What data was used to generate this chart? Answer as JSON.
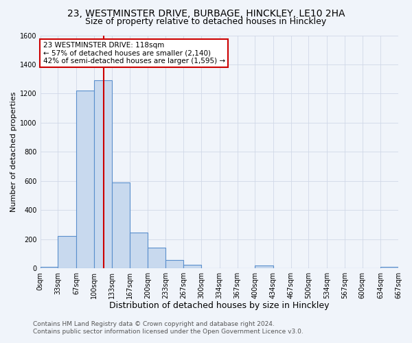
{
  "title": "23, WESTMINSTER DRIVE, BURBAGE, HINCKLEY, LE10 2HA",
  "subtitle": "Size of property relative to detached houses in Hinckley",
  "xlabel": "Distribution of detached houses by size in Hinckley",
  "ylabel": "Number of detached properties",
  "bin_edges": [
    0,
    33,
    67,
    100,
    133,
    167,
    200,
    233,
    267,
    300,
    334,
    367,
    400,
    434,
    467,
    500,
    534,
    567,
    600,
    634,
    667
  ],
  "bin_counts": [
    10,
    220,
    1220,
    1290,
    590,
    245,
    140,
    55,
    25,
    0,
    0,
    0,
    20,
    0,
    0,
    0,
    0,
    0,
    0,
    10
  ],
  "bar_facecolor": "#c8d9ee",
  "bar_edgecolor": "#5a8fcc",
  "property_line_x": 118,
  "property_line_color": "#cc0000",
  "annotation_line1": "23 WESTMINSTER DRIVE: 118sqm",
  "annotation_line2": "← 57% of detached houses are smaller (2,140)",
  "annotation_line3": "42% of semi-detached houses are larger (1,595) →",
  "annotation_box_edgecolor": "#cc0000",
  "annotation_box_facecolor": "#ffffff",
  "xlim": [
    0,
    667
  ],
  "ylim": [
    0,
    1600
  ],
  "yticks": [
    0,
    200,
    400,
    600,
    800,
    1000,
    1200,
    1400,
    1600
  ],
  "xtick_labels": [
    "0sqm",
    "33sqm",
    "67sqm",
    "100sqm",
    "133sqm",
    "167sqm",
    "200sqm",
    "233sqm",
    "267sqm",
    "300sqm",
    "334sqm",
    "367sqm",
    "400sqm",
    "434sqm",
    "467sqm",
    "500sqm",
    "534sqm",
    "567sqm",
    "600sqm",
    "634sqm",
    "667sqm"
  ],
  "xtick_positions": [
    0,
    33,
    67,
    100,
    133,
    167,
    200,
    233,
    267,
    300,
    334,
    367,
    400,
    434,
    467,
    500,
    534,
    567,
    600,
    634,
    667
  ],
  "grid_color": "#d0d8e8",
  "background_color": "#f0f4fa",
  "footer_line1": "Contains HM Land Registry data © Crown copyright and database right 2024.",
  "footer_line2": "Contains public sector information licensed under the Open Government Licence v3.0.",
  "title_fontsize": 10,
  "subtitle_fontsize": 9,
  "xlabel_fontsize": 9,
  "ylabel_fontsize": 8,
  "tick_fontsize": 7,
  "footer_fontsize": 6.5
}
